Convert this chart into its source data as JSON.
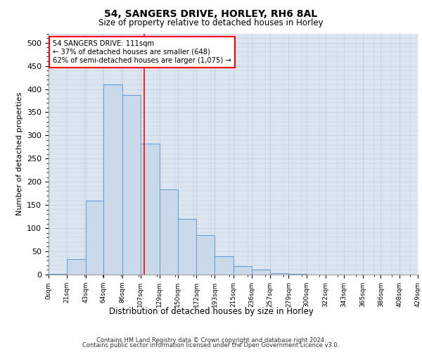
{
  "title1": "54, SANGERS DRIVE, HORLEY, RH6 8AL",
  "title2": "Size of property relative to detached houses in Horley",
  "xlabel": "Distribution of detached houses by size in Horley",
  "ylabel": "Number of detached properties",
  "bin_edges": [
    0,
    21,
    43,
    64,
    86,
    107,
    129,
    150,
    172,
    193,
    215,
    236,
    257,
    279,
    300,
    322,
    343,
    365,
    386,
    408,
    429
  ],
  "bar_heights": [
    2,
    33,
    160,
    410,
    387,
    282,
    184,
    120,
    85,
    40,
    18,
    10,
    3,
    1,
    0,
    0,
    0,
    0,
    0,
    0
  ],
  "bar_face_color": "#c9d9ea",
  "bar_edge_color": "#5b9bd5",
  "vline_color": "red",
  "vline_x": 111,
  "annotation_text": "54 SANGERS DRIVE: 111sqm\n← 37% of detached houses are smaller (648)\n62% of semi-detached houses are larger (1,075) →",
  "annotation_box_color": "white",
  "annotation_box_edge_color": "red",
  "grid_color": "#c0c8d8",
  "background_color": "#dce6f1",
  "ylim": [
    0,
    520
  ],
  "yticks": [
    0,
    50,
    100,
    150,
    200,
    250,
    300,
    350,
    400,
    450,
    500
  ],
  "footer1": "Contains HM Land Registry data © Crown copyright and database right 2024.",
  "footer2": "Contains public sector information licensed under the Open Government Licence v3.0."
}
